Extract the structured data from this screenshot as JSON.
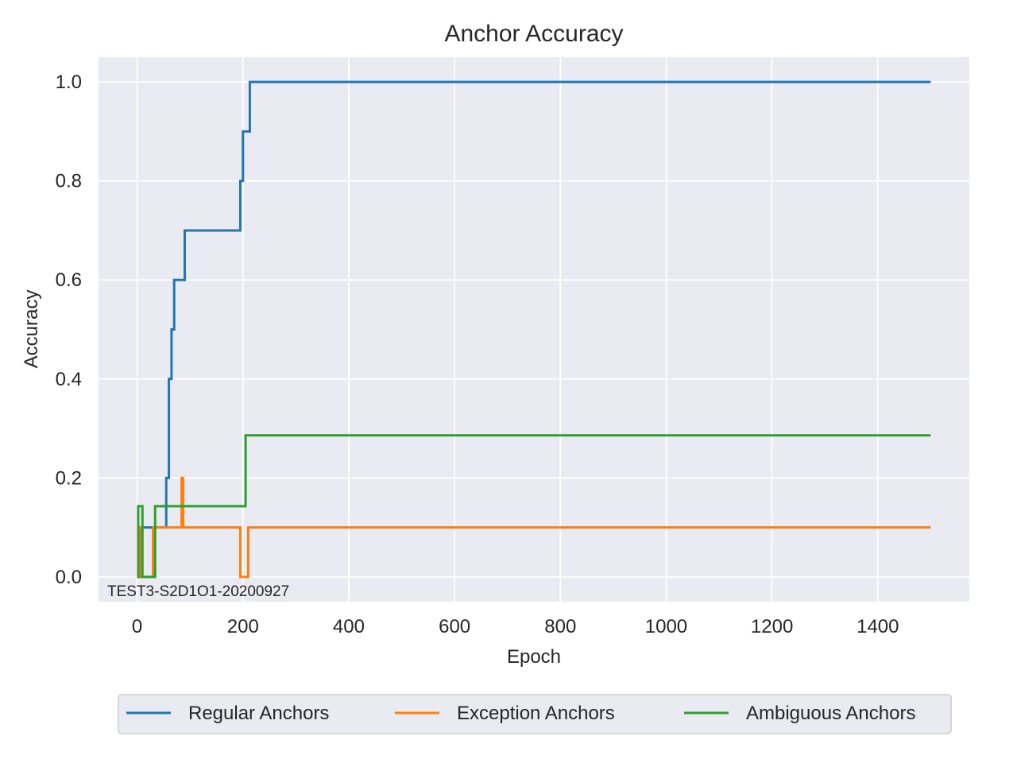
{
  "chart_data": {
    "type": "line",
    "title": "Anchor Accuracy",
    "xlabel": "Epoch",
    "ylabel": "Accuracy",
    "xlim": [
      -73,
      1573
    ],
    "ylim": [
      -0.05,
      1.05
    ],
    "xticks": [
      0,
      200,
      400,
      600,
      800,
      1000,
      1200,
      1400
    ],
    "yticks": [
      0.0,
      0.2,
      0.4,
      0.6,
      0.8,
      1.0
    ],
    "ytick_labels": [
      "0.0",
      "0.2",
      "0.4",
      "0.6",
      "0.8",
      "1.0"
    ],
    "grid": true,
    "style": "step",
    "annotation": "TEST3-S2D1O1-20200927",
    "legend_position": "bottom-center, below plot, 3 columns",
    "colors": {
      "background": "#eaeaf2",
      "grid": "#ffffff"
    },
    "series": [
      {
        "name": "Regular Anchors",
        "color": "#1f77b4",
        "x": [
          0,
          5,
          55,
          60,
          65,
          70,
          75,
          80,
          90,
          195,
          200,
          205,
          213,
          1500
        ],
        "y": [
          0.0,
          0.1,
          0.2,
          0.4,
          0.5,
          0.6,
          0.6,
          0.6,
          0.7,
          0.8,
          0.9,
          0.9,
          1.0,
          1.0
        ]
      },
      {
        "name": "Exception Anchors",
        "color": "#ff7f0e",
        "x": [
          0,
          3,
          8,
          30,
          84,
          87,
          90,
          195,
          210,
          1500
        ],
        "y": [
          0.0,
          0.1,
          0.0,
          0.1,
          0.2,
          0.1,
          0.1,
          0.0,
          0.1,
          0.1
        ]
      },
      {
        "name": "Ambiguous Anchors",
        "color": "#2ca02c",
        "x": [
          0,
          2,
          10,
          34,
          205,
          1500
        ],
        "y": [
          0.0,
          0.143,
          0.0,
          0.143,
          0.286,
          0.286
        ]
      }
    ]
  }
}
